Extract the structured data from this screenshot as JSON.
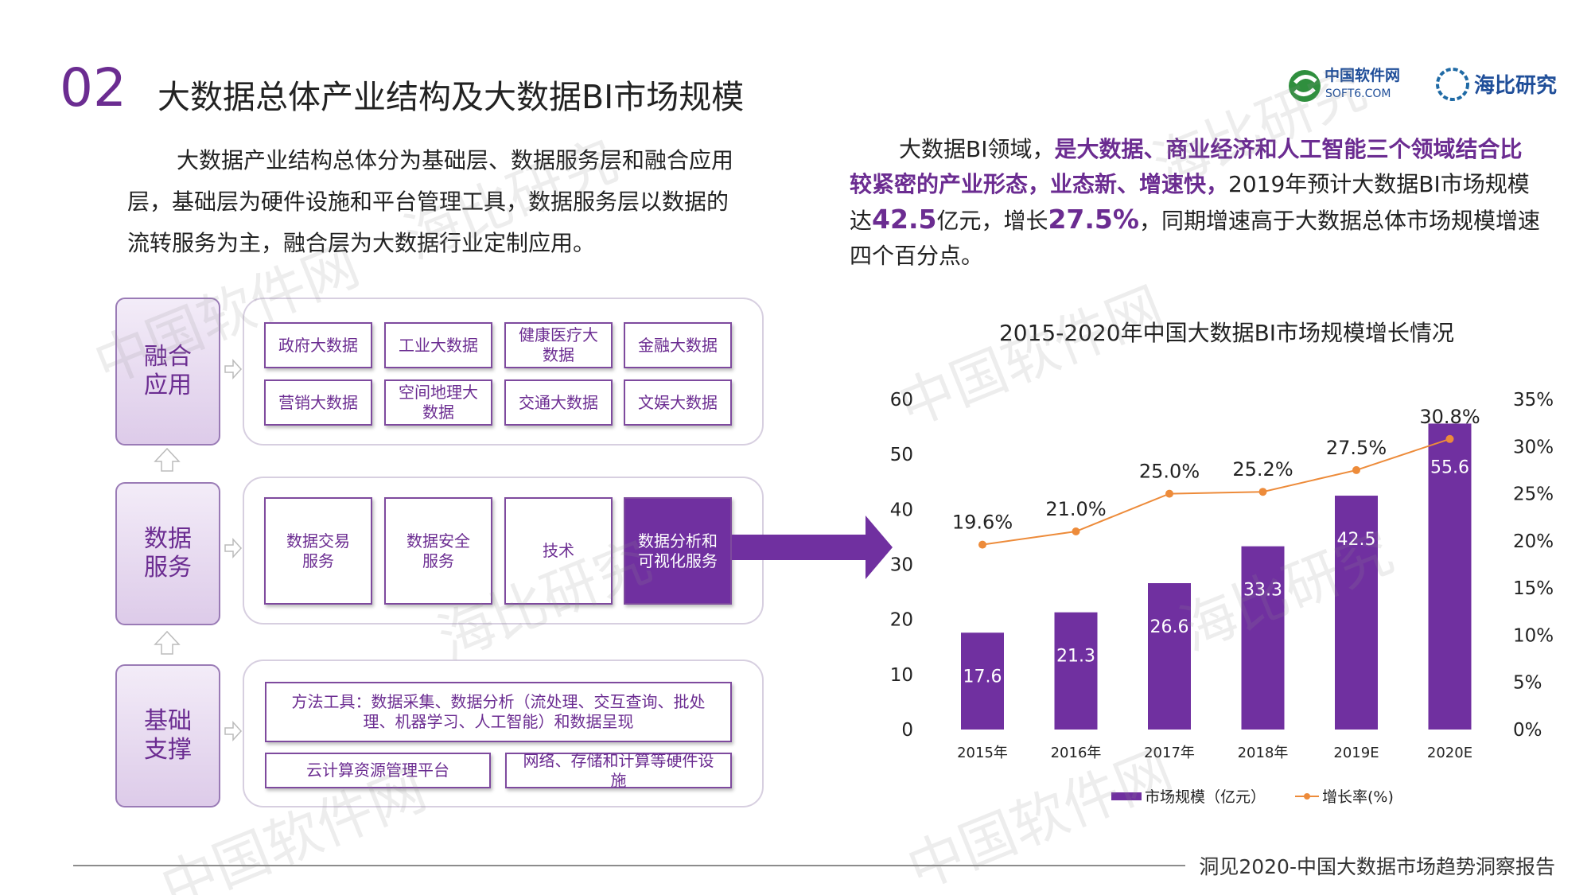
{
  "header": {
    "number": "02",
    "title": "大数据总体产业结构及大数据BI市场规模"
  },
  "logos": {
    "soft6_name": "中国软件网",
    "soft6_url": "SOFT6.COM",
    "haibi": "海比研究"
  },
  "watermark": [
    "中国软件网",
    "海比研究"
  ],
  "left_paragraph": "大数据产业结构总体分为基础层、数据服务层和融合应用层，基础层为硬件设施和平台管理工具，数据服务层以数据的流转服务为主，融合层为大数据行业定制应用。",
  "right_paragraph": [
    "大数据BI领域，",
    "是大数据、商业经济和人工智能三个领域结合比较紧密的产业形态，业态新、增速快，",
    "2019年预计大数据BI市场规模达",
    "42.5",
    "亿元，增长",
    "27.5%",
    "，同期增速高于大数据总体市场规模增速四个百分点。"
  ],
  "diagram": {
    "layers": [
      {
        "label": "融合应用",
        "items": [
          "政府大数据",
          "工业大数据",
          "健康医疗大数据",
          "金融大数据",
          "营销大数据",
          "空间地理大数据",
          "交通大数据",
          "文娱大数据"
        ]
      },
      {
        "label": "数据服务",
        "items": [
          "数据交易服务",
          "数据安全服务",
          "技术",
          "数据分析和可视化服务"
        ]
      },
      {
        "label": "基础支撑",
        "items": [
          "方法工具：数据采集、数据分析（流处理、交互查询、批处理、机器学习、人工智能）和数据呈现",
          "云计算资源管理平台",
          "网络、存储和计算等硬件设施"
        ]
      }
    ]
  },
  "chart_data": {
    "type": "bar",
    "title": "2015-2020年中国大数据BI市场规模增长情况",
    "categories": [
      "2015年",
      "2016年",
      "2017年",
      "2018年",
      "2019E",
      "2020E"
    ],
    "series": [
      {
        "name": "市场规模（亿元）",
        "type": "bar",
        "color": "#7030a0",
        "values": [
          17.6,
          21.3,
          26.6,
          33.3,
          42.5,
          55.6
        ]
      },
      {
        "name": "增长率(%)",
        "type": "line",
        "axis": "y2",
        "color": "#ed8b3a",
        "values": [
          19.6,
          21.0,
          25.0,
          25.2,
          27.5,
          30.8
        ],
        "value_labels": [
          "19.6%",
          "21.0%",
          "25.0%",
          "25.2%",
          "27.5%",
          "30.8%"
        ]
      }
    ],
    "ylim": [
      0,
      60
    ],
    "yticks": [
      0,
      10,
      20,
      30,
      40,
      50,
      60
    ],
    "y2lim": [
      0,
      35
    ],
    "y2ticks": [
      {
        "value": 0,
        "label": "0%"
      },
      {
        "value": 5,
        "label": "5%"
      },
      {
        "value": 10,
        "label": "10%"
      },
      {
        "value": 15,
        "label": "15%"
      },
      {
        "value": 20,
        "label": "20%"
      },
      {
        "value": 25,
        "label": "25%"
      },
      {
        "value": 30,
        "label": "30%"
      },
      {
        "value": 35,
        "label": "35%"
      }
    ],
    "grid": false
  },
  "footer": "洞见2020-中国大数据市场趋势洞察报告"
}
